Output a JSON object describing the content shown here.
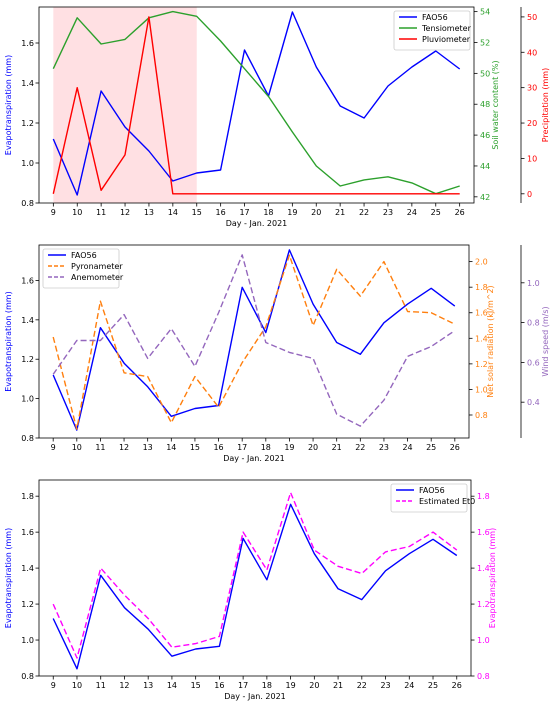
{
  "chart_data": [
    {
      "type": "line",
      "x": [
        9,
        10,
        11,
        12,
        13,
        14,
        15,
        16,
        17,
        18,
        19,
        20,
        21,
        22,
        23,
        24,
        25,
        26
      ],
      "xlabel": "Day - Jan. 2021",
      "shaded_region": {
        "x": [
          9,
          15
        ],
        "color": "#ffe0e3"
      },
      "axes": [
        {
          "label": "Evapotranspiration (mm)",
          "color": "#0000ff",
          "ylim": [
            0.8,
            1.78
          ],
          "ticks": [
            0.8,
            1.0,
            1.2,
            1.4,
            1.6
          ],
          "tick_labels": [
            "0.8",
            "1.0",
            "1.2",
            "1.4",
            "1.6"
          ]
        },
        {
          "label": "Soil water content (%)",
          "color": "#2ca02c",
          "ylim": [
            41.6,
            54.3
          ],
          "ticks": [
            42,
            44,
            46,
            48,
            50,
            52,
            54
          ],
          "tick_labels": [
            "42",
            "44",
            "46",
            "48",
            "50",
            "52",
            "54"
          ]
        },
        {
          "label": "Precipitation (mm)",
          "color": "#ff0000",
          "ylim": [
            -2.6,
            52.8
          ],
          "ticks": [
            0,
            10,
            20,
            30,
            40,
            50
          ],
          "tick_labels": [
            "0",
            "10",
            "20",
            "30",
            "40",
            "50"
          ]
        }
      ],
      "series": [
        {
          "name": "FAO56",
          "axis": 0,
          "color": "#0000ff",
          "dash": "",
          "values": [
            1.12,
            0.84,
            1.36,
            1.18,
            1.06,
            0.91,
            0.95,
            0.965,
            1.565,
            1.335,
            1.755,
            1.48,
            1.285,
            1.225,
            1.385,
            1.48,
            1.56,
            1.47
          ]
        },
        {
          "name": "Tensiometer",
          "axis": 1,
          "color": "#2ca02c",
          "dash": "",
          "values": [
            50.3,
            53.6,
            51.9,
            52.2,
            53.6,
            54.0,
            53.7,
            52.1,
            50.3,
            48.5,
            46.2,
            44.0,
            42.7,
            43.1,
            43.3,
            42.9,
            42.2,
            42.7
          ]
        },
        {
          "name": "Pluviometer",
          "axis": 2,
          "color": "#ff0000",
          "dash": "",
          "values": [
            0,
            30,
            1,
            11,
            50,
            0,
            0,
            0,
            0,
            0,
            0,
            0,
            0,
            0,
            0,
            0,
            0,
            0
          ]
        }
      ],
      "legend": "top-right"
    },
    {
      "type": "line",
      "x": [
        9,
        10,
        11,
        12,
        13,
        14,
        15,
        16,
        17,
        18,
        19,
        20,
        21,
        22,
        23,
        24,
        25,
        26
      ],
      "xlabel": "Day - Jan. 2021",
      "axes": [
        {
          "label": "Evapotranspiration (mm)",
          "color": "#0000ff",
          "ylim": [
            0.8,
            1.78
          ],
          "ticks": [
            0.8,
            1.0,
            1.2,
            1.4,
            1.6
          ],
          "tick_labels": [
            "0.8",
            "1.0",
            "1.2",
            "1.4",
            "1.6"
          ]
        },
        {
          "label": "Net solar radiation (kJ/m^2)",
          "color": "#ff7f0e",
          "ylim": [
            0.62,
            2.13
          ],
          "ticks": [
            0.8,
            1.0,
            1.2,
            1.4,
            1.6,
            1.8,
            2.0
          ],
          "tick_labels": [
            "0.8",
            "1.0",
            "1.2",
            "1.4",
            "1.6",
            "1.8",
            "2.0"
          ]
        },
        {
          "label": "Wind speed (m/s)",
          "color": "#9467bd",
          "ylim": [
            0.22,
            1.19
          ],
          "ticks": [
            0.4,
            0.6,
            0.8,
            1.0
          ],
          "tick_labels": [
            "0.4",
            "0.6",
            "0.8",
            "1.0"
          ]
        }
      ],
      "series": [
        {
          "name": "FAO56",
          "axis": 0,
          "color": "#0000ff",
          "dash": "",
          "values": [
            1.12,
            0.84,
            1.36,
            1.18,
            1.06,
            0.91,
            0.95,
            0.965,
            1.565,
            1.335,
            1.755,
            1.48,
            1.285,
            1.225,
            1.385,
            1.48,
            1.56,
            1.47
          ]
        },
        {
          "name": "Pyronameter",
          "axis": 1,
          "color": "#ff7f0e",
          "dash": "6,3",
          "values": [
            1.41,
            0.69,
            1.69,
            1.13,
            1.1,
            0.74,
            1.1,
            0.86,
            1.21,
            1.49,
            2.05,
            1.5,
            1.94,
            1.73,
            2.0,
            1.61,
            1.6,
            1.51
          ]
        },
        {
          "name": "Anemometer",
          "axis": 2,
          "color": "#9467bd",
          "dash": "6,3",
          "values": [
            0.54,
            0.71,
            0.71,
            0.84,
            0.62,
            0.77,
            0.58,
            0.85,
            1.14,
            0.7,
            0.65,
            0.62,
            0.34,
            0.28,
            0.41,
            0.63,
            0.68,
            0.76
          ]
        }
      ],
      "legend": "top-left"
    },
    {
      "type": "line",
      "x": [
        9,
        10,
        11,
        12,
        13,
        14,
        15,
        16,
        17,
        18,
        19,
        20,
        21,
        22,
        23,
        24,
        25,
        26
      ],
      "xlabel": "Day - Jan. 2021",
      "axes": [
        {
          "label": "Evapotranspiration (mm)",
          "color": "#0000ff",
          "ylim": [
            0.8,
            1.89
          ],
          "ticks": [
            0.8,
            1.0,
            1.2,
            1.4,
            1.6,
            1.8
          ],
          "tick_labels": [
            "0.8",
            "1.0",
            "1.2",
            "1.4",
            "1.6",
            "1.8"
          ]
        },
        {
          "label": "Evapotranspiration (mm)",
          "color": "#ff00ff",
          "ylim": [
            0.8,
            1.89
          ],
          "ticks": [
            0.8,
            1.0,
            1.2,
            1.4,
            1.6,
            1.8
          ],
          "tick_labels": [
            "0.8",
            "1.0",
            "1.2",
            "1.4",
            "1.6",
            "1.8"
          ]
        }
      ],
      "series": [
        {
          "name": "FAO56",
          "axis": 0,
          "color": "#0000ff",
          "dash": "",
          "values": [
            1.12,
            0.84,
            1.36,
            1.18,
            1.06,
            0.91,
            0.95,
            0.965,
            1.565,
            1.335,
            1.755,
            1.48,
            1.285,
            1.225,
            1.385,
            1.48,
            1.56,
            1.47
          ]
        },
        {
          "name": "Estimated Et0",
          "axis": 1,
          "color": "#ff00ff",
          "dash": "6,3",
          "values": [
            1.2,
            0.9,
            1.4,
            1.25,
            1.12,
            0.96,
            0.98,
            1.02,
            1.6,
            1.39,
            1.82,
            1.5,
            1.41,
            1.37,
            1.49,
            1.52,
            1.6,
            1.5
          ]
        }
      ],
      "legend": "top-right"
    }
  ]
}
